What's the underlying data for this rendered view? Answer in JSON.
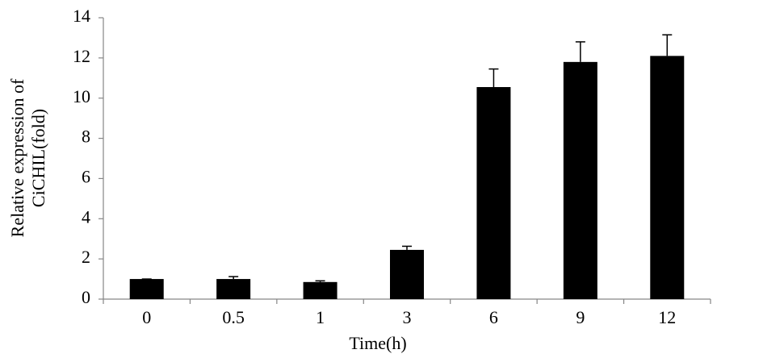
{
  "chart_data": {
    "type": "bar",
    "x_label": "Time(h)",
    "y_label": [
      "Relative expression of",
      "CiCHIL(fold)"
    ],
    "categories": [
      "0",
      "0.5",
      "1",
      "3",
      "6",
      "9",
      "12"
    ],
    "values": [
      1.0,
      1.0,
      0.85,
      2.45,
      10.55,
      11.8,
      12.1
    ],
    "errors": [
      0,
      0.12,
      0.06,
      0.18,
      0.9,
      1.0,
      1.05
    ],
    "color": "#000000",
    "ylim": [
      0,
      14
    ],
    "yticks": [
      0,
      2,
      4,
      6,
      8,
      10,
      12,
      14
    ],
    "grid": false
  }
}
